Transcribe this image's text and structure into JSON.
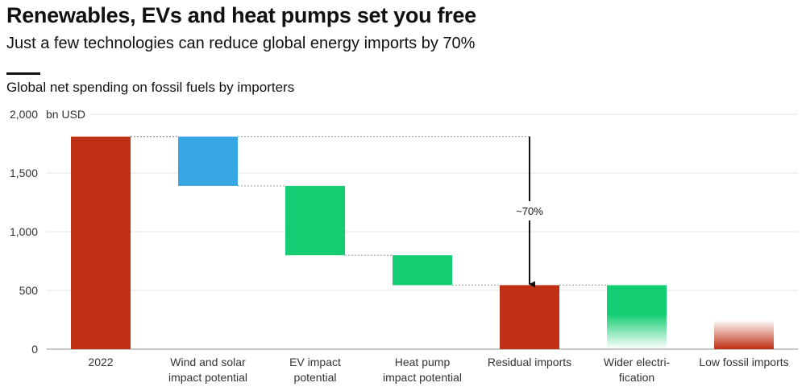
{
  "header": {
    "title": "Renewables, EVs and heat pumps set you free",
    "subtitle": "Just a few technologies can reduce global energy imports by 70%"
  },
  "chart_data": {
    "type": "waterfall",
    "title": "Global net spending on fossil fuels by importers",
    "ylabel": "bn USD",
    "ylim": [
      0,
      2000
    ],
    "yticks": [
      0,
      500,
      1000,
      1500,
      2000
    ],
    "ytick_labels": [
      "0",
      "500",
      "1,000",
      "1,500",
      "2,000"
    ],
    "grid": true,
    "bars": [
      {
        "label": [
          "2022"
        ],
        "kind": "total",
        "start": 0,
        "end": 1810,
        "color": "#bf3014"
      },
      {
        "label": [
          "Wind and solar",
          "impact potential"
        ],
        "kind": "decrease",
        "start": 1810,
        "end": 1390,
        "color": "#37a6e3"
      },
      {
        "label": [
          "EV impact",
          "potential"
        ],
        "kind": "decrease",
        "start": 1390,
        "end": 800,
        "color": "#14cd72"
      },
      {
        "label": [
          "Heat pump",
          "impact potential"
        ],
        "kind": "decrease",
        "start": 800,
        "end": 545,
        "color": "#14cd72"
      },
      {
        "label": [
          "Residual imports"
        ],
        "kind": "total",
        "start": 0,
        "end": 545,
        "color": "#bf3014"
      },
      {
        "label": [
          "Wider electri-",
          "fication"
        ],
        "kind": "fade",
        "start": 0,
        "end": 545,
        "color": "#14cd72"
      },
      {
        "label": [
          "Low fossil imports"
        ],
        "kind": "fade",
        "start": 0,
        "end": 250,
        "color": "#bf3014"
      }
    ],
    "annotation": {
      "text": "~70%",
      "from": 1810,
      "to": 545
    }
  }
}
